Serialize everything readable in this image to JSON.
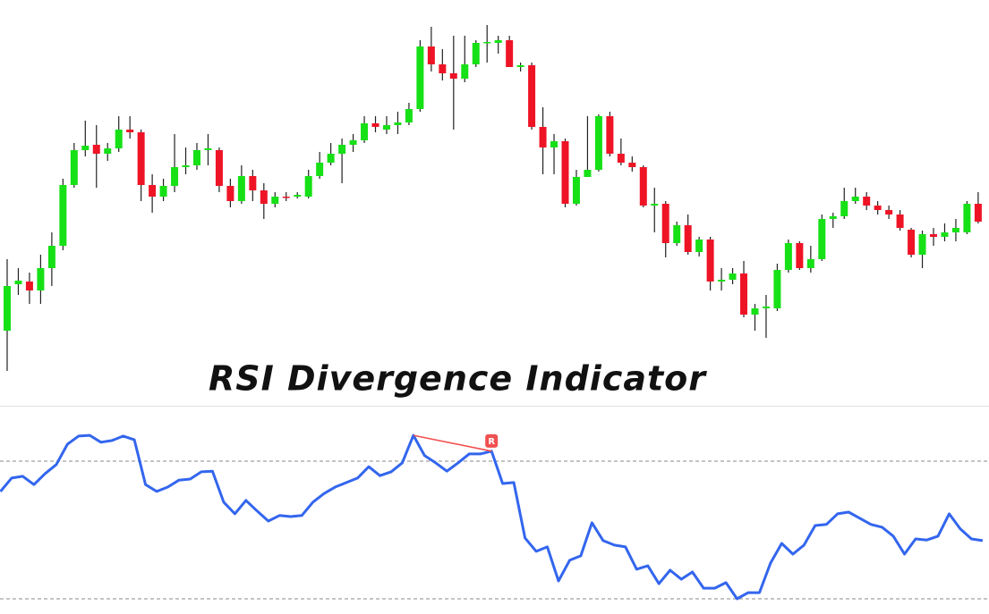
{
  "chart_data": [
    {
      "type": "candlestick",
      "title": "RSI Divergence Indicator",
      "up_color": "#16e016",
      "down_color": "#ee1426",
      "wick_color": "#222222",
      "ylim": [
        0,
        420
      ],
      "candles": [
        {
          "open": 50,
          "high": 130,
          "low": 5,
          "close": 100
        },
        {
          "open": 102,
          "high": 120,
          "low": 90,
          "close": 106
        },
        {
          "open": 105,
          "high": 115,
          "low": 80,
          "close": 95
        },
        {
          "open": 95,
          "high": 135,
          "low": 80,
          "close": 120
        },
        {
          "open": 120,
          "high": 160,
          "low": 100,
          "close": 145
        },
        {
          "open": 145,
          "high": 220,
          "low": 140,
          "close": 213
        },
        {
          "open": 213,
          "high": 260,
          "low": 210,
          "close": 252
        },
        {
          "open": 252,
          "high": 285,
          "low": 245,
          "close": 257
        },
        {
          "open": 258,
          "high": 280,
          "low": 210,
          "close": 248
        },
        {
          "open": 248,
          "high": 260,
          "low": 240,
          "close": 254
        },
        {
          "open": 254,
          "high": 290,
          "low": 250,
          "close": 275
        },
        {
          "open": 275,
          "high": 290,
          "low": 265,
          "close": 272
        },
        {
          "open": 272,
          "high": 275,
          "low": 195,
          "close": 213
        },
        {
          "open": 213,
          "high": 225,
          "low": 182,
          "close": 200
        },
        {
          "open": 200,
          "high": 220,
          "low": 195,
          "close": 212
        },
        {
          "open": 212,
          "high": 270,
          "low": 205,
          "close": 233
        },
        {
          "open": 233,
          "high": 255,
          "low": 225,
          "close": 235
        },
        {
          "open": 235,
          "high": 260,
          "low": 230,
          "close": 252
        },
        {
          "open": 252,
          "high": 270,
          "low": 235,
          "close": 254
        },
        {
          "open": 252,
          "high": 255,
          "low": 205,
          "close": 212
        },
        {
          "open": 212,
          "high": 220,
          "low": 188,
          "close": 195
        },
        {
          "open": 195,
          "high": 235,
          "low": 192,
          "close": 223
        },
        {
          "open": 223,
          "high": 230,
          "low": 195,
          "close": 207
        },
        {
          "open": 207,
          "high": 215,
          "low": 175,
          "close": 192
        },
        {
          "open": 192,
          "high": 205,
          "low": 188,
          "close": 200
        },
        {
          "open": 200,
          "high": 205,
          "low": 195,
          "close": 199
        },
        {
          "open": 200,
          "high": 205,
          "low": 198,
          "close": 202
        },
        {
          "open": 200,
          "high": 230,
          "low": 198,
          "close": 223
        },
        {
          "open": 223,
          "high": 250,
          "low": 220,
          "close": 238
        },
        {
          "open": 238,
          "high": 260,
          "low": 235,
          "close": 248
        },
        {
          "open": 248,
          "high": 265,
          "low": 215,
          "close": 258
        },
        {
          "open": 258,
          "high": 270,
          "low": 250,
          "close": 263
        },
        {
          "open": 263,
          "high": 290,
          "low": 260,
          "close": 282
        },
        {
          "open": 282,
          "high": 290,
          "low": 272,
          "close": 278
        },
        {
          "open": 275,
          "high": 290,
          "low": 270,
          "close": 280
        },
        {
          "open": 280,
          "high": 295,
          "low": 270,
          "close": 283
        },
        {
          "open": 283,
          "high": 305,
          "low": 280,
          "close": 298
        },
        {
          "open": 298,
          "high": 375,
          "low": 295,
          "close": 368
        },
        {
          "open": 368,
          "high": 390,
          "low": 340,
          "close": 348
        },
        {
          "open": 348,
          "high": 365,
          "low": 330,
          "close": 338
        },
        {
          "open": 338,
          "high": 380,
          "low": 275,
          "close": 332
        },
        {
          "open": 332,
          "high": 380,
          "low": 328,
          "close": 348
        },
        {
          "open": 348,
          "high": 375,
          "low": 345,
          "close": 372
        },
        {
          "open": 372,
          "high": 392,
          "low": 350,
          "close": 373
        },
        {
          "open": 372,
          "high": 380,
          "low": 360,
          "close": 375
        },
        {
          "open": 375,
          "high": 380,
          "low": 345,
          "close": 345
        },
        {
          "open": 345,
          "high": 350,
          "low": 340,
          "close": 347
        },
        {
          "open": 347,
          "high": 350,
          "low": 275,
          "close": 278
        },
        {
          "open": 278,
          "high": 300,
          "low": 225,
          "close": 255
        },
        {
          "open": 255,
          "high": 270,
          "low": 225,
          "close": 262
        },
        {
          "open": 262,
          "high": 265,
          "low": 188,
          "close": 192
        },
        {
          "open": 192,
          "high": 230,
          "low": 190,
          "close": 222
        },
        {
          "open": 222,
          "high": 290,
          "low": 222,
          "close": 230
        },
        {
          "open": 230,
          "high": 292,
          "low": 228,
          "close": 290
        },
        {
          "open": 290,
          "high": 295,
          "low": 245,
          "close": 248
        },
        {
          "open": 248,
          "high": 265,
          "low": 235,
          "close": 238
        },
        {
          "open": 238,
          "high": 245,
          "low": 228,
          "close": 233
        },
        {
          "open": 233,
          "high": 235,
          "low": 188,
          "close": 190
        },
        {
          "open": 190,
          "high": 210,
          "low": 160,
          "close": 192
        },
        {
          "open": 192,
          "high": 195,
          "low": 132,
          "close": 148
        },
        {
          "open": 148,
          "high": 172,
          "low": 145,
          "close": 168
        },
        {
          "open": 168,
          "high": 180,
          "low": 135,
          "close": 138
        },
        {
          "open": 138,
          "high": 155,
          "low": 133,
          "close": 152
        },
        {
          "open": 152,
          "high": 155,
          "low": 95,
          "close": 105
        },
        {
          "open": 105,
          "high": 120,
          "low": 95,
          "close": 107
        },
        {
          "open": 107,
          "high": 120,
          "low": 102,
          "close": 114
        },
        {
          "open": 114,
          "high": 128,
          "low": 65,
          "close": 68
        },
        {
          "open": 68,
          "high": 80,
          "low": 50,
          "close": 75
        },
        {
          "open": 75,
          "high": 90,
          "low": 42,
          "close": 77
        },
        {
          "open": 75,
          "high": 125,
          "low": 72,
          "close": 118
        },
        {
          "open": 118,
          "high": 152,
          "low": 115,
          "close": 148
        },
        {
          "open": 148,
          "high": 150,
          "low": 118,
          "close": 120
        },
        {
          "open": 120,
          "high": 145,
          "low": 115,
          "close": 130
        },
        {
          "open": 130,
          "high": 180,
          "low": 128,
          "close": 175
        },
        {
          "open": 175,
          "high": 182,
          "low": 165,
          "close": 178
        },
        {
          "open": 178,
          "high": 210,
          "low": 175,
          "close": 195
        },
        {
          "open": 195,
          "high": 210,
          "low": 192,
          "close": 200
        },
        {
          "open": 200,
          "high": 205,
          "low": 185,
          "close": 190
        },
        {
          "open": 190,
          "high": 195,
          "low": 180,
          "close": 185
        },
        {
          "open": 185,
          "high": 190,
          "low": 175,
          "close": 180
        },
        {
          "open": 180,
          "high": 185,
          "low": 162,
          "close": 165
        },
        {
          "open": 163,
          "high": 165,
          "low": 132,
          "close": 135
        },
        {
          "open": 135,
          "high": 162,
          "low": 120,
          "close": 158
        },
        {
          "open": 158,
          "high": 165,
          "low": 145,
          "close": 155
        },
        {
          "open": 155,
          "high": 170,
          "low": 150,
          "close": 160
        },
        {
          "open": 160,
          "high": 175,
          "low": 150,
          "close": 165
        },
        {
          "open": 160,
          "high": 195,
          "low": 158,
          "close": 192
        },
        {
          "open": 192,
          "high": 205,
          "low": 170,
          "close": 172
        }
      ]
    },
    {
      "type": "line",
      "ylim": [
        25,
        86
      ],
      "levels": [
        70,
        30
      ],
      "color": "#3366ee",
      "values": [
        61.2,
        65.1,
        65.6,
        63.2,
        66.4,
        69.0,
        74.9,
        77.3,
        77.5,
        75.5,
        76.0,
        77.3,
        76.2,
        63.2,
        61.2,
        62.5,
        64.5,
        64.8,
        66.9,
        67.1,
        58.1,
        54.7,
        58.6,
        55.5,
        52.6,
        54.2,
        53.9,
        54.2,
        58.1,
        60.6,
        62.5,
        63.8,
        65.1,
        68.4,
        65.8,
        66.9,
        69.5,
        77.5,
        71.6,
        69.5,
        67.1,
        69.5,
        72.1,
        72.1,
        72.9,
        63.5,
        63.8,
        47.7,
        43.8,
        45.1,
        35.2,
        41.2,
        42.5,
        52.1,
        46.9,
        45.6,
        45.1,
        38.6,
        39.6,
        34.4,
        38.3,
        35.7,
        37.8,
        33.1,
        33.1,
        34.7,
        30.0,
        31.8,
        31.8,
        40.4,
        46.1,
        43.0,
        45.6,
        51.3,
        51.6,
        54.7,
        55.2,
        53.4,
        51.6,
        50.8,
        48.2,
        43.0,
        47.4,
        47.1,
        48.2,
        54.7,
        50.3,
        47.4,
        46.9
      ],
      "divergence": {
        "label": "R",
        "color": "#f05050",
        "x": [
          37,
          44
        ],
        "values": [
          77.5,
          72.9
        ]
      }
    }
  ]
}
